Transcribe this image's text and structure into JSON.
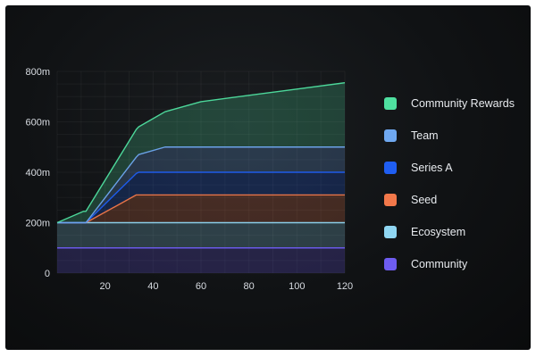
{
  "chart_data": {
    "type": "area",
    "stacked": true,
    "grid": true,
    "legend_position": "right",
    "xlim": [
      0,
      120
    ],
    "ylim": [
      0,
      800
    ],
    "x_ticks": [
      20,
      40,
      60,
      80,
      100,
      120
    ],
    "y_ticks": [
      0,
      200,
      400,
      600,
      800
    ],
    "y_tick_labels": [
      "0",
      "200m",
      "400m",
      "600m",
      "800m"
    ],
    "x": [
      0,
      11,
      12,
      33,
      34,
      45,
      60,
      80,
      100,
      120
    ],
    "series": [
      {
        "name": "Community",
        "color": "#6e5cf0",
        "values": [
          100,
          100,
          100,
          100,
          100,
          100,
          100,
          100,
          100,
          100
        ]
      },
      {
        "name": "Ecosystem",
        "color": "#8fd6f2",
        "values": [
          100,
          100,
          100,
          100,
          100,
          100,
          100,
          100,
          100,
          100
        ]
      },
      {
        "name": "Seed",
        "color": "#f2784a",
        "values": [
          0,
          0,
          0,
          110,
          110,
          110,
          110,
          110,
          110,
          110
        ]
      },
      {
        "name": "Series A",
        "color": "#1f5ef2",
        "values": [
          0,
          0,
          0,
          85,
          90,
          90,
          90,
          90,
          90,
          90
        ]
      },
      {
        "name": "Team",
        "color": "#6fa8f0",
        "values": [
          0,
          0,
          0,
          65,
          70,
          100,
          100,
          100,
          100,
          100
        ]
      },
      {
        "name": "Community Rewards",
        "color": "#4fe0a0",
        "values": [
          0,
          45,
          45,
          110,
          110,
          140,
          180,
          205,
          230,
          255
        ]
      }
    ]
  },
  "legend": {
    "items": [
      {
        "label": "Community Rewards",
        "color": "#4fe0a0"
      },
      {
        "label": "Team",
        "color": "#6fa8f0"
      },
      {
        "label": "Series A",
        "color": "#1f5ef2"
      },
      {
        "label": "Seed",
        "color": "#f2784a"
      },
      {
        "label": "Ecosystem",
        "color": "#8fd6f2"
      },
      {
        "label": "Community",
        "color": "#6e5cf0"
      }
    ]
  }
}
